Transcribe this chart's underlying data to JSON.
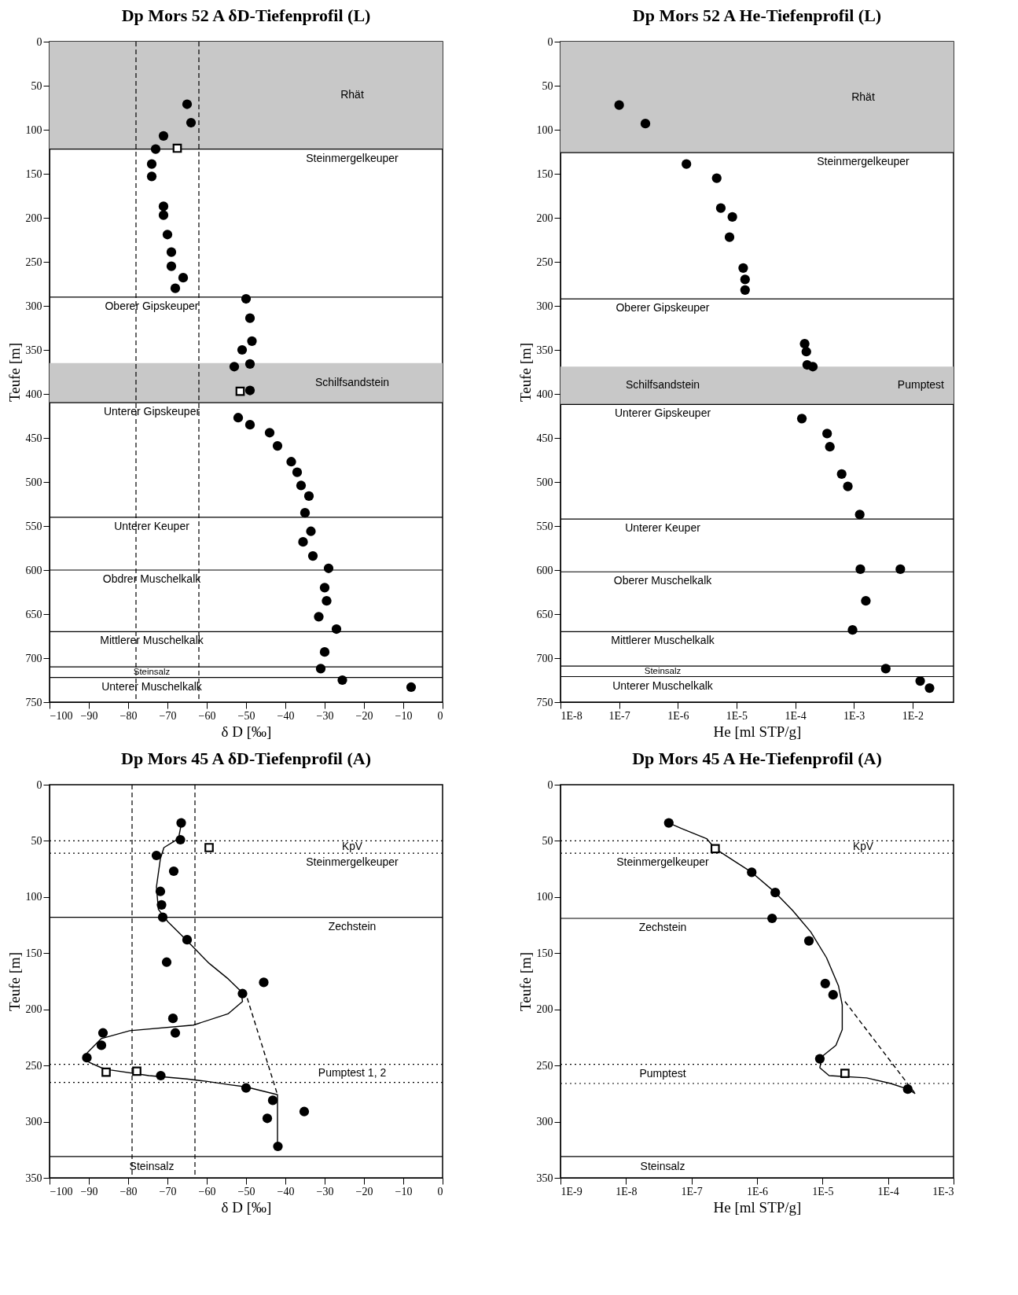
{
  "chart_data": [
    {
      "type": "scatter",
      "title": "Dp Mors 52 A δD-Tiefenprofil (L)",
      "xlabel": "δ D [‰]",
      "ylabel": "Teufe [m]",
      "xlim": [
        -100,
        0
      ],
      "xticks": [
        -100,
        -90,
        -80,
        -70,
        -60,
        -50,
        -40,
        -30,
        -20,
        -10,
        0
      ],
      "ylim": [
        750,
        0
      ],
      "yticks": [
        0,
        50,
        100,
        150,
        200,
        250,
        300,
        350,
        400,
        450,
        500,
        550,
        600,
        650,
        700,
        750
      ],
      "series": [
        {
          "type": "scatter",
          "marker": "circle",
          "color": "#000000",
          "x": [
            -65,
            -64,
            -71,
            -73,
            -74,
            -74,
            -71,
            -71,
            -70,
            -69,
            -69,
            -66,
            -68,
            -50,
            -49,
            -48.5,
            -51,
            -53,
            -49,
            -49,
            -52,
            -49,
            -44,
            -42,
            -38.5,
            -37,
            -36,
            -34,
            -35,
            -33.5,
            -35.5,
            -33,
            -29,
            -30,
            -29.5,
            -31.5,
            -27,
            -30,
            -31,
            -25.5,
            -8
          ],
          "values": [
            71,
            92,
            107,
            122,
            139,
            153,
            187,
            197,
            219,
            239,
            255,
            268,
            280,
            292,
            314,
            340,
            350,
            369,
            366,
            396,
            427,
            435,
            444,
            459,
            477,
            489,
            504,
            516,
            535,
            556,
            568,
            584,
            598,
            620,
            635,
            653,
            667,
            693,
            712,
            725,
            733
          ]
        },
        {
          "type": "scatter",
          "marker": "square",
          "color": "#000000",
          "x": [
            -67.5,
            -51.5
          ],
          "values": [
            121,
            397
          ]
        }
      ],
      "bands": [
        {
          "axis": "y",
          "from": 0,
          "to": 122,
          "color": "#c8c8c8",
          "label": "Rhät"
        },
        {
          "axis": "y",
          "from": 365,
          "to": 410,
          "color": "#c8c8c8",
          "label": "Schilfsandstein"
        }
      ],
      "ref_lines": [
        {
          "axis": "y",
          "value": 122,
          "line_style": "solid",
          "label": "Steinmergelkeuper"
        },
        {
          "axis": "y",
          "value": 290,
          "line_style": "solid",
          "label": "Oberer Gipskeuper"
        },
        {
          "axis": "y",
          "value": 410,
          "line_style": "solid",
          "label": "Unterer Gipskeuper"
        },
        {
          "axis": "y",
          "value": 540,
          "line_style": "solid",
          "label": "Unterer Keuper"
        },
        {
          "axis": "y",
          "value": 600,
          "line_style": "solid",
          "label": "Obdrer Muschelkalk"
        },
        {
          "axis": "y",
          "value": 670,
          "line_style": "solid",
          "label": "Mittlerer Muschelkalk"
        },
        {
          "axis": "y",
          "value": 710,
          "line_style": "solid",
          "label": "Steinsalz"
        },
        {
          "axis": "y",
          "value": 722,
          "line_style": "solid",
          "label": "Unterer Muschelkalk"
        },
        {
          "axis": "x",
          "value": -78,
          "line_style": "dashed"
        },
        {
          "axis": "x",
          "value": -62,
          "line_style": "dashed"
        }
      ]
    },
    {
      "type": "scatter",
      "title": "Dp Mors 52 A He-Tiefenprofil (L)",
      "xlabel": "He [ml STP/g]",
      "ylabel": "Teufe [m]",
      "log": "x",
      "xlim": [
        1e-08,
        0.05
      ],
      "xticks": [
        {
          "value": 1e-08,
          "label": "1E-8"
        },
        {
          "value": 1e-07,
          "label": "1E-7"
        },
        {
          "value": 1e-06,
          "label": "1E-6"
        },
        {
          "value": 1e-05,
          "label": "1E-5"
        },
        {
          "value": 0.0001,
          "label": "1E-4"
        },
        {
          "value": 0.001,
          "label": "1E-3"
        },
        {
          "value": 0.01,
          "label": "1E-2"
        }
      ],
      "ylim": [
        750,
        0
      ],
      "yticks": [
        0,
        50,
        100,
        150,
        200,
        250,
        300,
        350,
        400,
        450,
        500,
        550,
        600,
        650,
        700,
        750
      ],
      "series": [
        {
          "type": "scatter",
          "marker": "circle",
          "color": "#000000",
          "x": [
            1e-07,
            2.8e-07,
            1.4e-06,
            4.6e-06,
            5.4e-06,
            8.5e-06,
            7.6e-06,
            1.3e-05,
            1.4e-05,
            1.4e-05,
            0.000145,
            0.000155,
            0.00016,
            0.0002,
            0.00013,
            0.00035,
            0.00039,
            0.00062,
            0.00079,
            0.00126,
            0.00129,
            0.0062,
            0.0016,
            0.00095,
            0.0035,
            0.0135,
            0.0195
          ],
          "values": [
            72,
            93,
            139,
            155,
            189,
            199,
            222,
            257,
            270,
            282,
            343,
            352,
            367,
            369,
            428,
            445,
            460,
            491,
            505,
            537,
            599,
            599,
            635,
            668,
            712,
            726,
            734
          ]
        }
      ],
      "bands": [
        {
          "axis": "y",
          "from": 0,
          "to": 126,
          "color": "#c8c8c8",
          "label": "Rhät"
        },
        {
          "axis": "y",
          "from": 369,
          "to": 412,
          "color": "#c8c8c8",
          "label": "Schilfsandstein"
        }
      ],
      "annotations": [
        "Pumptest"
      ],
      "ref_lines": [
        {
          "axis": "y",
          "value": 126,
          "line_style": "solid",
          "label": "Steinmergelkeuper"
        },
        {
          "axis": "y",
          "value": 292,
          "line_style": "solid",
          "label": "Oberer Gipskeuper"
        },
        {
          "axis": "y",
          "value": 412,
          "line_style": "solid",
          "label": "Unterer Gipskeuper"
        },
        {
          "axis": "y",
          "value": 542,
          "line_style": "solid",
          "label": "Unterer Keuper"
        },
        {
          "axis": "y",
          "value": 602,
          "line_style": "solid",
          "label": "Oberer Muschelkalk"
        },
        {
          "axis": "y",
          "value": 670,
          "line_style": "solid",
          "label": "Mittlerer Muschelkalk"
        },
        {
          "axis": "y",
          "value": 709,
          "line_style": "solid",
          "label": "Steinsalz"
        },
        {
          "axis": "y",
          "value": 721,
          "line_style": "solid",
          "label": "Unterer Muschelkalk"
        }
      ]
    },
    {
      "type": "scatter",
      "title": "Dp Mors 45 A δD-Tiefenprofil (A)",
      "xlabel": "δ D [‰]",
      "ylabel": "Teufe [m]",
      "xlim": [
        -100,
        0
      ],
      "xticks": [
        -100,
        -90,
        -80,
        -70,
        -60,
        -50,
        -40,
        -30,
        -20,
        -10,
        0
      ],
      "ylim": [
        350,
        0
      ],
      "yticks": [
        0,
        50,
        100,
        150,
        200,
        250,
        300,
        350
      ],
      "series": [
        {
          "type": "scatter",
          "marker": "circle",
          "color": "#000000",
          "x": [
            -66.5,
            -66.7,
            -72.8,
            -68.4,
            -71.8,
            -71.5,
            -71.2,
            -65,
            -70.2,
            -45.5,
            -50.9,
            -68.6,
            -68,
            -86.4,
            -86.8,
            -90.5,
            -71.7,
            -50,
            -43.2,
            -35.2,
            -44.6,
            -41.9
          ],
          "values": [
            34,
            49,
            63,
            77,
            95,
            107,
            118,
            138,
            158,
            176,
            186,
            208,
            221,
            221,
            232,
            243,
            259,
            270,
            281,
            291,
            297,
            322
          ]
        },
        {
          "type": "scatter",
          "marker": "square",
          "color": "#000000",
          "x": [
            -59.4,
            -85.6,
            -77.8
          ],
          "values": [
            56,
            256,
            255
          ]
        },
        {
          "type": "line",
          "marker": "none",
          "line_style": "solid",
          "color": "#000000",
          "x": [
            -66.2,
            -67.2,
            -70.9,
            -71.8,
            -72.8,
            -72.3,
            -69.9,
            -65,
            -59.4,
            -54.5,
            -51.3,
            -50.9,
            -54.6,
            -63.4,
            -79.6,
            -86.8,
            -90.5,
            -90,
            -86.8,
            -84.4,
            -74.7,
            -65,
            -60.2,
            -54.5,
            -50.1,
            -42,
            -42
          ],
          "values": [
            30,
            48,
            56,
            66,
            91,
            111,
            122,
            139,
            159,
            173,
            184,
            193,
            204,
            214,
            219,
            226,
            239,
            247,
            252,
            254,
            259,
            262,
            264,
            267,
            269,
            276,
            320
          ]
        },
        {
          "type": "line",
          "marker": "none",
          "line_style": "dashed",
          "color": "#000000",
          "x": [
            -49.7,
            -42
          ],
          "values": [
            190,
            276
          ]
        }
      ],
      "ref_lines": [
        {
          "axis": "y",
          "value": 50,
          "line_style": "dotted",
          "label": "KpV"
        },
        {
          "axis": "y",
          "value": 61,
          "line_style": "dotted",
          "label": "Steinmergelkeuper"
        },
        {
          "axis": "y",
          "value": 118,
          "line_style": "solid",
          "label": "Zechstein"
        },
        {
          "axis": "y",
          "value": 249,
          "line_style": "dotted",
          "label": "Pumptest 1, 2"
        },
        {
          "axis": "y",
          "value": 265,
          "line_style": "dotted"
        },
        {
          "axis": "y",
          "value": 331,
          "line_style": "solid",
          "label": "Steinsalz"
        },
        {
          "axis": "x",
          "value": -79,
          "line_style": "dashed"
        },
        {
          "axis": "x",
          "value": -63,
          "line_style": "dashed"
        }
      ]
    },
    {
      "type": "scatter",
      "title": "Dp Mors 45 A He-Tiefenprofil (A)",
      "xlabel": "He [ml STP/g]",
      "ylabel": "Teufe [m]",
      "log": "x",
      "xlim": [
        1e-09,
        0.001
      ],
      "xticks": [
        {
          "value": 1e-09,
          "label": "1E-9"
        },
        {
          "value": 1e-08,
          "label": "1E-8"
        },
        {
          "value": 1e-07,
          "label": "1E-7"
        },
        {
          "value": 1e-06,
          "label": "1E-6"
        },
        {
          "value": 1e-05,
          "label": "1E-5"
        },
        {
          "value": 0.0001,
          "label": "1E-4"
        },
        {
          "value": 0.001,
          "label": "1E-3"
        }
      ],
      "ylim": [
        350,
        0
      ],
      "yticks": [
        0,
        50,
        100,
        150,
        200,
        250,
        300,
        350
      ],
      "series": [
        {
          "type": "scatter",
          "marker": "circle",
          "color": "#000000",
          "x": [
            4.5e-08,
            8.3e-07,
            1.9e-06,
            1.7e-06,
            6.2e-06,
            1.1e-05,
            1.45e-05,
            9.1e-06,
            0.0002
          ],
          "values": [
            34,
            78,
            96,
            119,
            139,
            177,
            187,
            244,
            271
          ]
        },
        {
          "type": "scatter",
          "marker": "square",
          "color": "#000000",
          "x": [
            2.3e-07,
            2.2e-05
          ],
          "values": [
            57,
            257
          ]
        },
        {
          "type": "line",
          "marker": "none",
          "line_style": "solid",
          "color": "#000000",
          "x": [
            4.5e-08,
            7e-08,
            1.7e-07,
            2.3e-07,
            4.5e-07,
            8.3e-07,
            1.9e-06,
            3.5e-06,
            6.6e-06,
            1.15e-05,
            1.75e-05,
            2e-05,
            2e-05,
            1.6e-05,
            9.8e-06,
            9.1e-06,
            1.26e-05,
            4.7e-05,
            0.00011,
            0.0002,
            0.00026
          ],
          "values": [
            34,
            39,
            48,
            57,
            68,
            78,
            96,
            112,
            131,
            154,
            179,
            196,
            218,
            232,
            242,
            252,
            259,
            261,
            266,
            271,
            275
          ]
        },
        {
          "type": "line",
          "marker": "none",
          "line_style": "dashed",
          "color": "#000000",
          "x": [
            2.2e-05,
            0.00026
          ],
          "values": [
            193,
            275
          ]
        }
      ],
      "ref_lines": [
        {
          "axis": "y",
          "value": 50,
          "line_style": "dotted",
          "label": "KpV"
        },
        {
          "axis": "y",
          "value": 61,
          "line_style": "dotted",
          "label": "Steinmergelkeuper"
        },
        {
          "axis": "y",
          "value": 119,
          "line_style": "solid",
          "label": "Zechstein"
        },
        {
          "axis": "y",
          "value": 249,
          "line_style": "dotted",
          "label": "Pumptest"
        },
        {
          "axis": "y",
          "value": 266,
          "line_style": "dotted"
        },
        {
          "axis": "y",
          "value": 331,
          "line_style": "solid",
          "label": "Steinsalz"
        }
      ]
    }
  ]
}
